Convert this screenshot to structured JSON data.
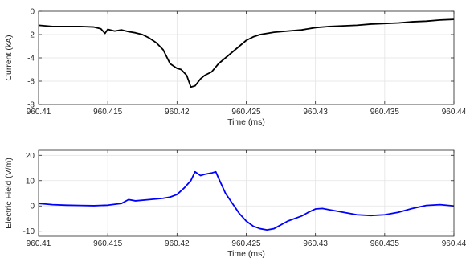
{
  "chart_data": [
    {
      "type": "line",
      "xlabel": "Time (ms)",
      "ylabel": "Current (kA)",
      "xlim": [
        960.41,
        960.44
      ],
      "ylim": [
        -8,
        0
      ],
      "xticks": [
        960.41,
        960.415,
        960.42,
        960.425,
        960.43,
        960.435,
        960.44
      ],
      "xtick_labels": [
        "960.41",
        "960.415",
        "960.42",
        "960.425",
        "960.43",
        "960.435",
        "960.44"
      ],
      "yticks": [
        -8,
        -6,
        -4,
        -2,
        0
      ],
      "ytick_labels": [
        "-8",
        "-6",
        "-4",
        "-2",
        "0"
      ],
      "grid": true,
      "color": "#000000",
      "series": [
        {
          "x": [
            960.41,
            960.411,
            960.412,
            960.413,
            960.414,
            960.4145,
            960.4148,
            960.415,
            960.4155,
            960.416,
            960.4165,
            960.417,
            960.4175,
            960.418,
            960.4185,
            960.419,
            960.4195,
            960.42,
            960.4203,
            960.4207,
            960.421,
            960.4213,
            960.4217,
            960.422,
            960.4225,
            960.423,
            960.4235,
            960.424,
            960.4245,
            960.425,
            960.4255,
            960.426,
            960.427,
            960.428,
            960.429,
            960.43,
            960.431,
            960.432,
            960.433,
            960.434,
            960.435,
            960.436,
            960.437,
            960.438,
            960.439,
            960.44
          ],
          "y": [
            -1.2,
            -1.3,
            -1.3,
            -1.3,
            -1.35,
            -1.5,
            -1.9,
            -1.55,
            -1.7,
            -1.6,
            -1.75,
            -1.85,
            -2.0,
            -2.3,
            -2.7,
            -3.3,
            -4.5,
            -4.9,
            -5.0,
            -5.5,
            -6.5,
            -6.4,
            -5.8,
            -5.5,
            -5.2,
            -4.5,
            -4.0,
            -3.5,
            -3.0,
            -2.5,
            -2.2,
            -2.0,
            -1.8,
            -1.7,
            -1.6,
            -1.4,
            -1.3,
            -1.25,
            -1.2,
            -1.1,
            -1.05,
            -1.0,
            -0.9,
            -0.85,
            -0.75,
            -0.7
          ]
        }
      ]
    },
    {
      "type": "line",
      "xlabel": "Time (ms)",
      "ylabel": "Electric Field (V/m)",
      "xlim": [
        960.41,
        960.44
      ],
      "ylim": [
        -12,
        22
      ],
      "xticks": [
        960.41,
        960.415,
        960.42,
        960.425,
        960.43,
        960.435,
        960.44
      ],
      "xtick_labels": [
        "960.41",
        "960.415",
        "960.42",
        "960.425",
        "960.43",
        "960.435",
        "960.44"
      ],
      "yticks": [
        -10,
        0,
        10,
        20
      ],
      "ytick_labels": [
        "-10",
        "0",
        "10",
        "20"
      ],
      "grid": true,
      "color": "#0000ff",
      "series": [
        {
          "x": [
            960.41,
            960.411,
            960.412,
            960.413,
            960.414,
            960.415,
            960.416,
            960.4165,
            960.417,
            960.418,
            960.419,
            960.4195,
            960.42,
            960.4205,
            960.421,
            960.4213,
            960.4217,
            960.422,
            960.4225,
            960.4228,
            960.423,
            960.4235,
            960.424,
            960.4245,
            960.425,
            960.4255,
            960.426,
            960.4265,
            960.427,
            960.428,
            960.429,
            960.4295,
            960.43,
            960.4305,
            960.431,
            960.432,
            960.433,
            960.434,
            960.435,
            960.436,
            960.437,
            960.438,
            960.439,
            960.44
          ],
          "y": [
            1,
            0.5,
            0.3,
            0.2,
            0.1,
            0.3,
            1.0,
            2.5,
            2.0,
            2.5,
            3.0,
            3.5,
            4.5,
            7,
            10,
            13.5,
            12,
            12.5,
            13,
            13.5,
            11,
            5,
            1,
            -3,
            -6,
            -8,
            -9,
            -9.5,
            -9,
            -6,
            -4,
            -2.5,
            -1.2,
            -1,
            -1.5,
            -2.5,
            -3.5,
            -3.8,
            -3.5,
            -2.5,
            -1,
            0.2,
            0.5,
            0
          ]
        }
      ]
    }
  ]
}
